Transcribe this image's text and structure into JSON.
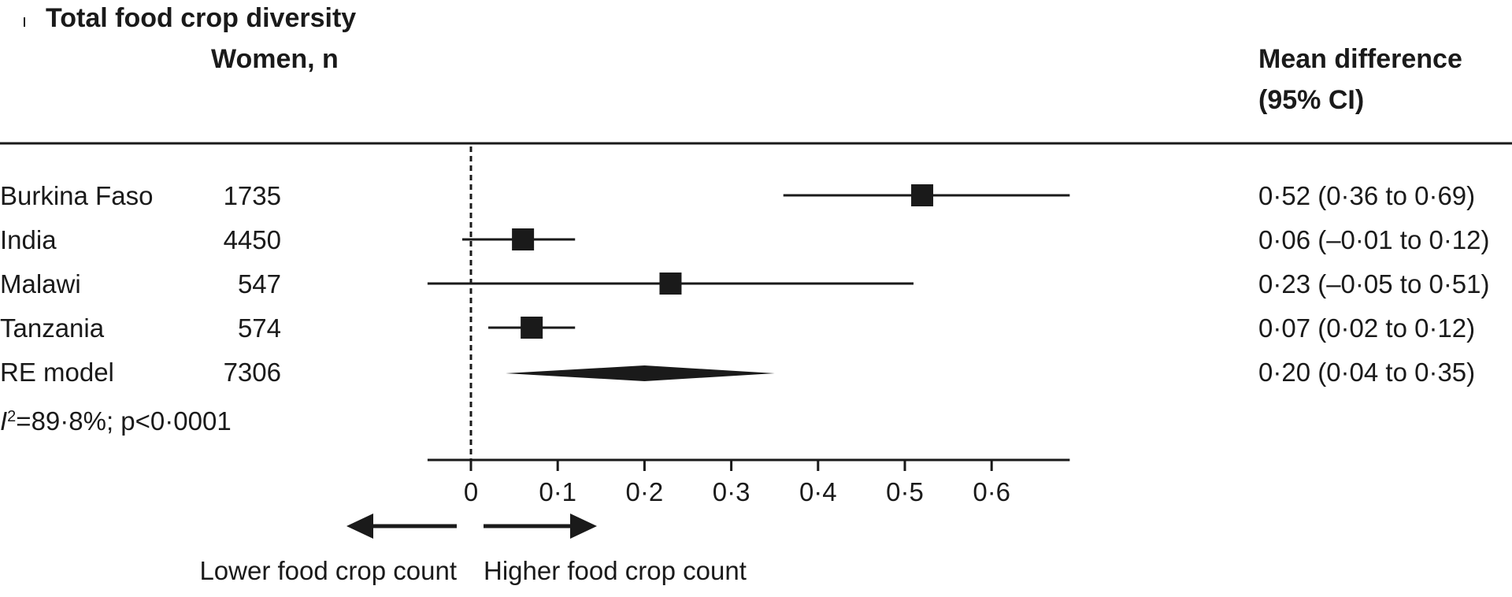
{
  "chart_data": {
    "type": "forest",
    "title": "Total food crop diversity",
    "n_header": "Women, n",
    "effect_header_line1": "Mean difference",
    "effect_header_line2": "(95% CI)",
    "studies": [
      {
        "name": "Burkina Faso",
        "n": "1735",
        "estimate": 0.52,
        "lower": 0.36,
        "upper": 0.69,
        "label": "0·52 (0·36 to 0·69)"
      },
      {
        "name": "India",
        "n": "4450",
        "estimate": 0.06,
        "lower": -0.01,
        "upper": 0.12,
        "label": "0·06 (–0·01 to 0·12)"
      },
      {
        "name": "Malawi",
        "n": "547",
        "estimate": 0.23,
        "lower": -0.05,
        "upper": 0.51,
        "label": "0·23 (–0·05 to 0·51)"
      },
      {
        "name": "Tanzania",
        "n": "574",
        "estimate": 0.07,
        "lower": 0.02,
        "upper": 0.12,
        "label": "0·07 (0·02 to 0·12)"
      }
    ],
    "pooled": {
      "name": "RE model",
      "n": "7306",
      "estimate": 0.2,
      "lower": 0.04,
      "upper": 0.35,
      "label": "0·20 (0·04 to 0·35)"
    },
    "heterogeneity_symbol": "I",
    "heterogeneity_sup": "2",
    "heterogeneity_rest": "=89·8%; p<0·0001",
    "x_ticks": [
      0,
      0.1,
      0.2,
      0.3,
      0.4,
      0.5,
      0.6
    ],
    "x_tick_labels": [
      "0",
      "0·1",
      "0·2",
      "0·3",
      "0·4",
      "0·5",
      "0·6"
    ],
    "xlim": [
      -0.05,
      0.69
    ],
    "null_value": 0,
    "arrow_left_label": "Lower food crop count",
    "arrow_right_label": "Higher food crop count"
  }
}
